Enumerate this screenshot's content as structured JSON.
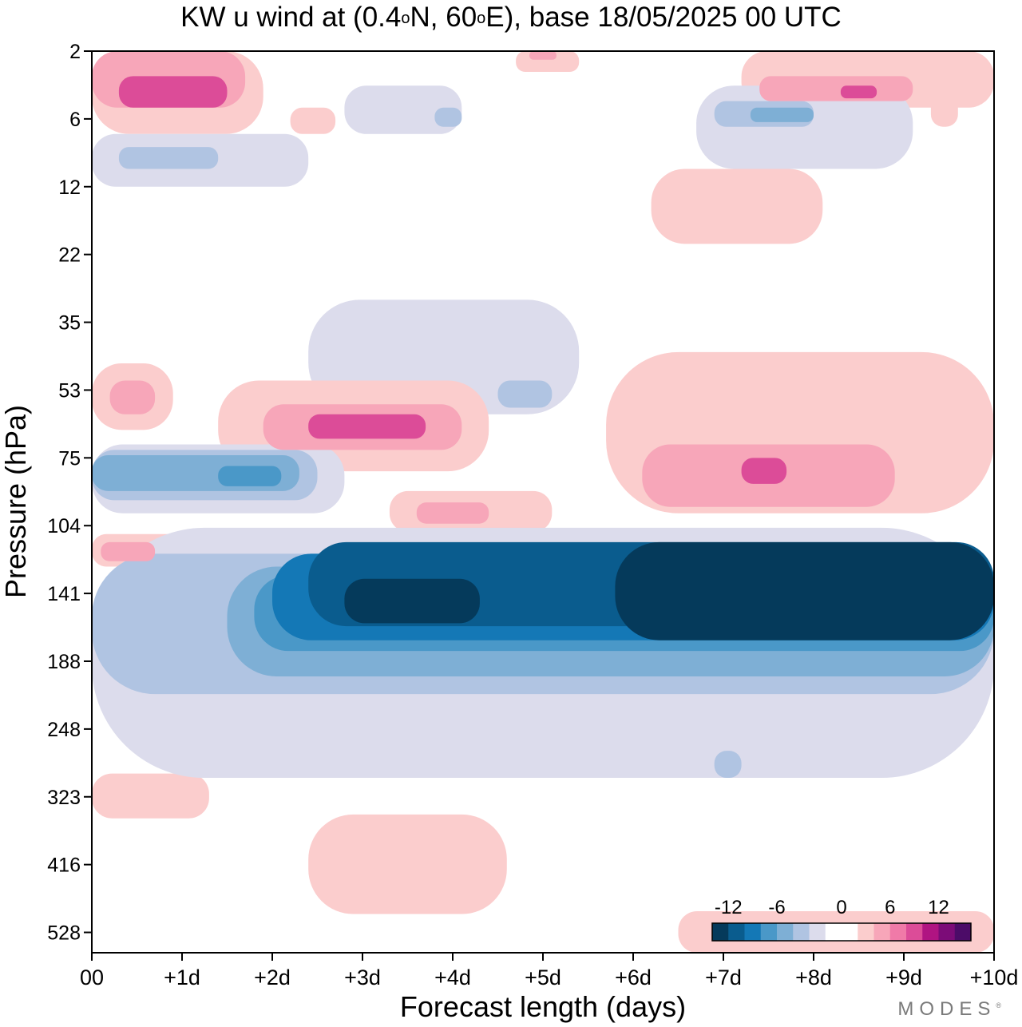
{
  "chart_data": {
    "type": "heatmap",
    "title_prefix": "KW u wind at (0.4",
    "title_deg1": "o",
    "title_mid": "N, 60",
    "title_deg2": "o",
    "title_suffix": "E),  base 18/05/2025  00 UTC",
    "xlabel": "Forecast length (days)",
    "ylabel": "Pressure (hPa)",
    "x_ticks": [
      "00",
      "+1d",
      "+2d",
      "+3d",
      "+4d",
      "+5d",
      "+6d",
      "+7d",
      "+8d",
      "+9d",
      "+10d"
    ],
    "x_range_days": [
      0,
      10
    ],
    "y_ticks": [
      2,
      6,
      12,
      22,
      35,
      53,
      75,
      104,
      141,
      188,
      248,
      323,
      416,
      528
    ],
    "colorbar": {
      "tick_labels": [
        "-12",
        "-6",
        "0",
        "6",
        "12"
      ],
      "levels": [
        -14,
        -12,
        -10,
        -8,
        -6,
        -4,
        -2,
        0,
        2,
        4,
        6,
        8,
        10,
        12,
        14
      ],
      "colors": [
        "#053a5b",
        "#0a5c8e",
        "#1478b6",
        "#4a98c8",
        "#7eafd5",
        "#b0c4e2",
        "#dcdcec",
        "#ffffff",
        "#ffffff",
        "#fbcdcd",
        "#f7a6b9",
        "#f07aa8",
        "#dc4c98",
        "#b01482",
        "#7c0c78",
        "#4c0c68"
      ]
    },
    "regions": [
      {
        "value": 2,
        "x0": 0.0,
        "x1": 1.9,
        "p0": 2,
        "p1": 7
      },
      {
        "value": 5,
        "x0": 0.0,
        "x1": 1.7,
        "p0": 2,
        "p1": 5
      },
      {
        "value": 8,
        "x0": 0.3,
        "x1": 1.5,
        "p0": 3,
        "p1": 5
      },
      {
        "value": 2,
        "x0": 2.2,
        "x1": 2.7,
        "p0": 5,
        "p1": 7
      },
      {
        "value": 2,
        "x0": 4.7,
        "x1": 5.4,
        "p0": 2,
        "p1": 2.8
      },
      {
        "value": 5,
        "x0": 4.85,
        "x1": 5.15,
        "p0": 2,
        "p1": 2.3
      },
      {
        "value": 2,
        "x0": 7.2,
        "x1": 10.0,
        "p0": 2,
        "p1": 5
      },
      {
        "value": 5,
        "x0": 7.4,
        "x1": 9.1,
        "p0": 3,
        "p1": 4.5
      },
      {
        "value": 8,
        "x0": 8.3,
        "x1": 8.7,
        "p0": 3.5,
        "p1": 4.3
      },
      {
        "value": 2,
        "x0": 9.3,
        "x1": 9.6,
        "p0": 4,
        "p1": 6.5
      },
      {
        "value": 2,
        "x0": 6.2,
        "x1": 8.1,
        "p0": 10,
        "p1": 20
      },
      {
        "value": -2,
        "x0": 0.0,
        "x1": 2.4,
        "p0": 7,
        "p1": 12
      },
      {
        "value": -4,
        "x0": 0.3,
        "x1": 1.4,
        "p0": 8,
        "p1": 10
      },
      {
        "value": -2,
        "x0": 2.8,
        "x1": 4.1,
        "p0": 3.5,
        "p1": 7
      },
      {
        "value": -4,
        "x0": 3.8,
        "x1": 4.1,
        "p0": 5,
        "p1": 6.5
      },
      {
        "value": -2,
        "x0": 6.7,
        "x1": 9.1,
        "p0": 3.5,
        "p1": 10
      },
      {
        "value": -4,
        "x0": 6.9,
        "x1": 8.0,
        "p0": 4.5,
        "p1": 6.5
      },
      {
        "value": -6,
        "x0": 7.3,
        "x1": 8.0,
        "p0": 5,
        "p1": 6.2
      },
      {
        "value": -2,
        "x0": 2.4,
        "x1": 5.4,
        "p0": 30,
        "p1": 60
      },
      {
        "value": -4,
        "x0": 4.5,
        "x1": 5.1,
        "p0": 50,
        "p1": 58
      },
      {
        "value": 2,
        "x0": 0.0,
        "x1": 0.9,
        "p0": 45,
        "p1": 65
      },
      {
        "value": 5,
        "x0": 0.2,
        "x1": 0.7,
        "p0": 50,
        "p1": 60
      },
      {
        "value": 2,
        "x0": 1.4,
        "x1": 4.4,
        "p0": 50,
        "p1": 80
      },
      {
        "value": 5,
        "x0": 1.9,
        "x1": 4.1,
        "p0": 57,
        "p1": 72
      },
      {
        "value": 8,
        "x0": 2.4,
        "x1": 3.7,
        "p0": 60,
        "p1": 68
      },
      {
        "value": 2,
        "x0": 5.7,
        "x1": 10.0,
        "p0": 42,
        "p1": 98
      },
      {
        "value": 5,
        "x0": 6.1,
        "x1": 8.9,
        "p0": 70,
        "p1": 95
      },
      {
        "value": 8,
        "x0": 7.2,
        "x1": 7.7,
        "p0": 75,
        "p1": 85
      },
      {
        "value": 2,
        "x0": 3.3,
        "x1": 5.1,
        "p0": 88,
        "p1": 107
      },
      {
        "value": 5,
        "x0": 3.6,
        "x1": 4.4,
        "p0": 93,
        "p1": 103
      },
      {
        "value": -2,
        "x0": 0.0,
        "x1": 2.8,
        "p0": 70,
        "p1": 98
      },
      {
        "value": -4,
        "x0": 0.0,
        "x1": 2.5,
        "p0": 72,
        "p1": 92
      },
      {
        "value": -6,
        "x0": 0.0,
        "x1": 2.3,
        "p0": 74,
        "p1": 88
      },
      {
        "value": -8,
        "x0": 1.4,
        "x1": 2.1,
        "p0": 78,
        "p1": 86
      },
      {
        "value": 2,
        "x0": 0.0,
        "x1": 1.4,
        "p0": 108,
        "p1": 125
      },
      {
        "value": 5,
        "x0": 0.1,
        "x1": 0.7,
        "p0": 112,
        "p1": 122
      },
      {
        "value": 2,
        "x0": 0.0,
        "x1": 1.3,
        "p0": 295,
        "p1": 350
      },
      {
        "value": 2,
        "x0": 2.4,
        "x1": 4.6,
        "p0": 345,
        "p1": 495
      },
      {
        "value": 2,
        "x0": 6.5,
        "x1": 10.0,
        "p0": 490,
        "p1": 580
      },
      {
        "value": -2,
        "x0": 0.0,
        "x1": 10.0,
        "p0": 105,
        "p1": 300
      },
      {
        "value": -4,
        "x0": 0.0,
        "x1": 10.0,
        "p0": 118,
        "p1": 215
      },
      {
        "value": -6,
        "x0": 1.5,
        "x1": 10.0,
        "p0": 125,
        "p1": 200
      },
      {
        "value": -8,
        "x0": 1.8,
        "x1": 10.0,
        "p0": 130,
        "p1": 180
      },
      {
        "value": -10,
        "x0": 2.0,
        "x1": 10.0,
        "p0": 118,
        "p1": 172
      },
      {
        "value": -12,
        "x0": 2.4,
        "x1": 10.0,
        "p0": 112,
        "p1": 162
      },
      {
        "value": -14,
        "x0": 2.8,
        "x1": 4.3,
        "p0": 132,
        "p1": 160
      },
      {
        "value": -14,
        "x0": 5.8,
        "x1": 10.0,
        "p0": 112,
        "p1": 172
      },
      {
        "value": -4,
        "x0": 6.9,
        "x1": 7.2,
        "p0": 270,
        "p1": 300
      }
    ]
  },
  "branding": {
    "text": "MODES",
    "mark": "®"
  }
}
